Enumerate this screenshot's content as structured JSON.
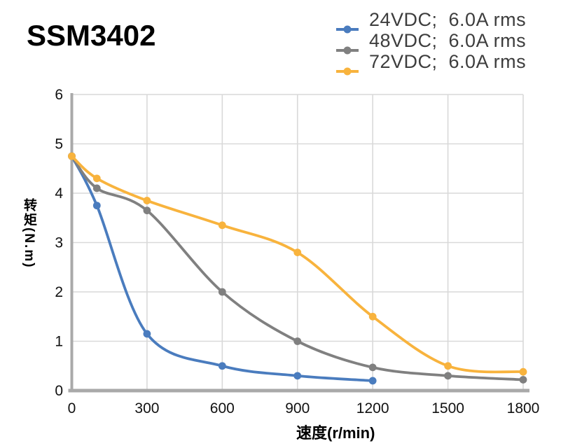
{
  "page_title": "SSM3402",
  "colors": {
    "series_blue": "#4A7CBE",
    "series_gray": "#808080",
    "series_yellow": "#F8B33D",
    "gridline": "#D9D9D9",
    "axis_line": "#A9A9A9",
    "tick_text": "#111111",
    "legend_text": "#3d3d3d"
  },
  "chart_data": {
    "type": "line",
    "title": "SSM3402",
    "xlabel": "速度(r/min)",
    "ylabel": "转矩(N.m)",
    "xlim": [
      0,
      1800
    ],
    "ylim": [
      0,
      6
    ],
    "x_ticks": [
      0,
      300,
      600,
      900,
      1200,
      1500,
      1800
    ],
    "y_ticks": [
      0,
      1,
      2,
      3,
      4,
      5,
      6
    ],
    "grid": true,
    "smooth": true,
    "legend_position": "top-right",
    "series": [
      {
        "name": "24VDC;  6.0A rms",
        "slug": "24vdc",
        "color": "#4A7CBE",
        "points": [
          [
            0,
            4.75
          ],
          [
            100,
            3.75
          ],
          [
            300,
            1.15
          ],
          [
            600,
            0.5
          ],
          [
            900,
            0.3
          ],
          [
            1200,
            0.2
          ]
        ]
      },
      {
        "name": "48VDC;  6.0A rms",
        "slug": "48vdc",
        "color": "#808080",
        "points": [
          [
            0,
            4.75
          ],
          [
            100,
            4.1
          ],
          [
            300,
            3.65
          ],
          [
            600,
            2.0
          ],
          [
            900,
            1.0
          ],
          [
            1200,
            0.47
          ],
          [
            1500,
            0.3
          ],
          [
            1800,
            0.22
          ]
        ]
      },
      {
        "name": "72VDC;  6.0A rms",
        "slug": "72vdc",
        "color": "#F8B33D",
        "points": [
          [
            0,
            4.75
          ],
          [
            100,
            4.3
          ],
          [
            300,
            3.85
          ],
          [
            600,
            3.35
          ],
          [
            900,
            2.8
          ],
          [
            1200,
            1.5
          ],
          [
            1500,
            0.5
          ],
          [
            1800,
            0.38
          ]
        ]
      }
    ]
  }
}
